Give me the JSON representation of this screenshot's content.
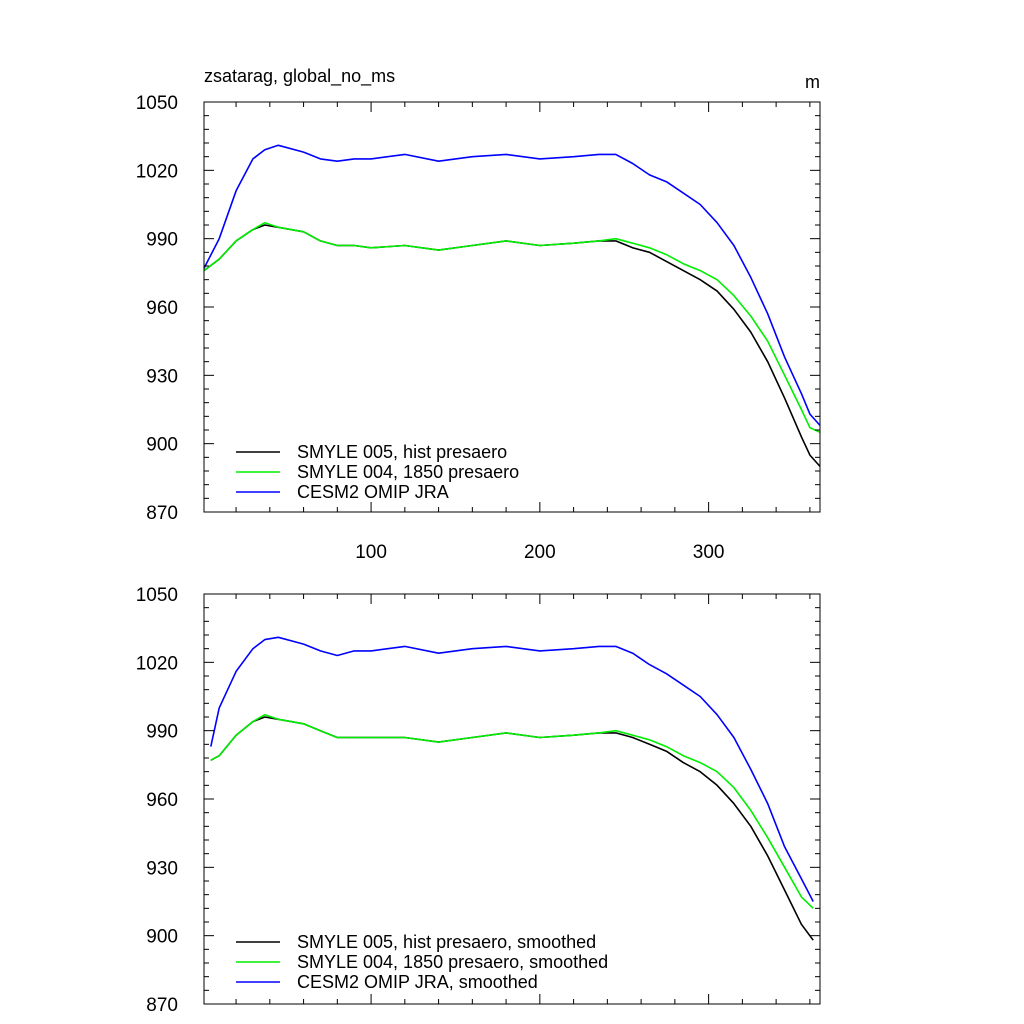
{
  "title_left": "zsatarag, global_no_ms",
  "title_right": "m",
  "chart_data": [
    {
      "type": "line",
      "title": "zsatarag, global_no_ms",
      "units": "m",
      "xlim": [
        1,
        366
      ],
      "ylim": [
        870,
        1050
      ],
      "xticks": [
        100,
        200,
        300
      ],
      "xtick_labels": [
        "100",
        "200",
        "300"
      ],
      "yticks": [
        870,
        900,
        930,
        960,
        990,
        1020,
        1050
      ],
      "ytick_labels": [
        "870",
        "900",
        "930",
        "960",
        "990",
        "1020",
        "1050"
      ],
      "grid": false,
      "legend_position": "bottom-left",
      "x": [
        1,
        10,
        20,
        30,
        37,
        45,
        60,
        70,
        80,
        90,
        100,
        120,
        140,
        160,
        180,
        200,
        220,
        235,
        245,
        255,
        265,
        275,
        285,
        295,
        305,
        315,
        325,
        335,
        345,
        355,
        360,
        366
      ],
      "series": [
        {
          "name": "SMYLE 005, hist presaero",
          "color": "#000000",
          "values": [
            976,
            981,
            989,
            994,
            996,
            995,
            993,
            989,
            987,
            987,
            986,
            987,
            985,
            987,
            989,
            987,
            988,
            989,
            989,
            986,
            984,
            980,
            976,
            972,
            967,
            959,
            949,
            936,
            920,
            903,
            895,
            890
          ]
        },
        {
          "name": "SMYLE 004, 1850 presaero",
          "color": "#00ee00",
          "values": [
            976,
            981,
            989,
            994,
            997,
            995,
            993,
            989,
            987,
            987,
            986,
            987,
            985,
            987,
            989,
            987,
            988,
            989,
            990,
            988,
            986,
            983,
            979,
            976,
            972,
            965,
            956,
            945,
            930,
            915,
            907,
            905
          ]
        },
        {
          "name": "CESM2 OMIP JRA",
          "color": "#0000ff",
          "values": [
            977,
            990,
            1011,
            1025,
            1029,
            1031,
            1028,
            1025,
            1024,
            1025,
            1025,
            1027,
            1024,
            1026,
            1027,
            1025,
            1026,
            1027,
            1027,
            1023,
            1018,
            1015,
            1010,
            1005,
            997,
            987,
            973,
            957,
            938,
            922,
            913,
            908
          ]
        }
      ]
    },
    {
      "type": "line",
      "xlim": [
        1,
        366
      ],
      "ylim": [
        870,
        1050
      ],
      "xticks": [
        100,
        200,
        300
      ],
      "yticks": [
        870,
        900,
        930,
        960,
        990,
        1020,
        1050
      ],
      "ytick_labels": [
        "870",
        "900",
        "930",
        "960",
        "990",
        "1020",
        "1050"
      ],
      "grid": false,
      "legend_position": "bottom-left",
      "x": [
        5,
        10,
        20,
        30,
        37,
        45,
        60,
        70,
        80,
        90,
        100,
        120,
        140,
        160,
        180,
        200,
        220,
        235,
        245,
        255,
        265,
        275,
        285,
        295,
        305,
        315,
        325,
        335,
        345,
        355,
        362
      ],
      "series": [
        {
          "name": "SMYLE 005, hist presaero, smoothed",
          "color": "#000000",
          "values": [
            977,
            979,
            988,
            994,
            996,
            995,
            993,
            990,
            987,
            987,
            987,
            987,
            985,
            987,
            989,
            987,
            988,
            989,
            989,
            987,
            984,
            981,
            976,
            972,
            966,
            958,
            948,
            935,
            920,
            905,
            898
          ]
        },
        {
          "name": "SMYLE 004, 1850 presaero, smoothed",
          "color": "#00ee00",
          "values": [
            977,
            979,
            988,
            994,
            997,
            995,
            993,
            990,
            987,
            987,
            987,
            987,
            985,
            987,
            989,
            987,
            988,
            989,
            990,
            988,
            986,
            983,
            979,
            976,
            972,
            965,
            955,
            943,
            930,
            917,
            912
          ]
        },
        {
          "name": "CESM2 OMIP JRA, smoothed",
          "color": "#0000ff",
          "values": [
            983,
            1000,
            1016,
            1026,
            1030,
            1031,
            1028,
            1025,
            1023,
            1025,
            1025,
            1027,
            1024,
            1026,
            1027,
            1025,
            1026,
            1027,
            1027,
            1024,
            1019,
            1015,
            1010,
            1005,
            997,
            987,
            973,
            958,
            939,
            925,
            915
          ]
        }
      ]
    }
  ]
}
